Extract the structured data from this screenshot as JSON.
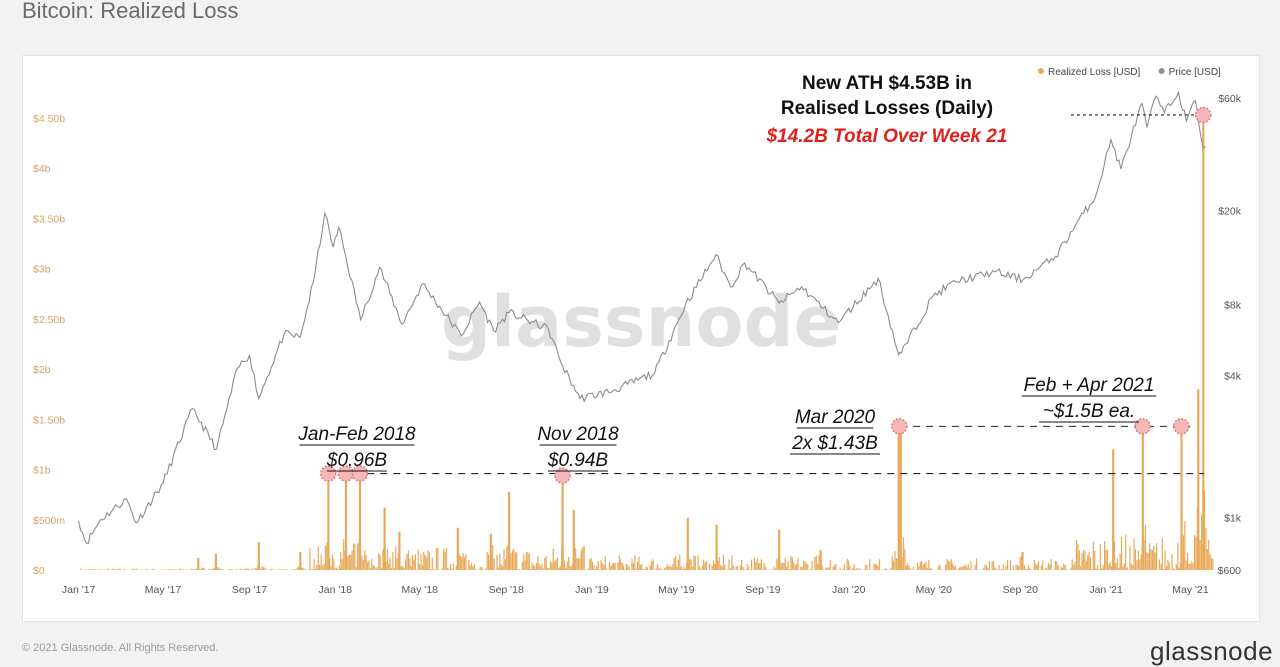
{
  "page": {
    "title": "Bitcoin: Realized Loss",
    "footer_left": "© 2021 Glassnode. All Rights Reserved.",
    "footer_brand": "glassnode",
    "watermark": "glassnode"
  },
  "colors": {
    "loss": "#e9a95a",
    "price": "#8c8c8c",
    "annotation_red": "#e0201b",
    "marker_fill": "#f4b8b8",
    "marker_stroke": "#e07a7a",
    "axis_text_left": "#d9a464",
    "axis_text": "#555555"
  },
  "chart_data": {
    "type": "bar",
    "legend": [
      {
        "name": "Realized Loss [USD]",
        "color": "#e9a95a"
      },
      {
        "name": "Price [USD]",
        "color": "#8c8c8c"
      }
    ],
    "legend_position": "top-right",
    "x_ticks": [
      "Jan '17",
      "May '17",
      "Sep '17",
      "Jan '18",
      "May '18",
      "Sep '18",
      "Jan '19",
      "May '19",
      "Sep '19",
      "Jan '20",
      "May '20",
      "Sep '20",
      "Jan '21",
      "May '21"
    ],
    "x_tick_dates": [
      "2017-01-01",
      "2017-05-01",
      "2017-09-01",
      "2018-01-01",
      "2018-05-01",
      "2018-09-01",
      "2019-01-01",
      "2019-05-01",
      "2019-09-01",
      "2020-01-01",
      "2020-05-01",
      "2020-09-01",
      "2021-01-01",
      "2021-05-01"
    ],
    "x_range": [
      "2016-12-24",
      "2021-06-02"
    ],
    "y_left": {
      "ticks": [
        0,
        0.5,
        1,
        1.5,
        2,
        2.5,
        3,
        3.5,
        4,
        4.5
      ],
      "tick_labels": [
        "$0",
        "$500m",
        "$1b",
        "$1.50b",
        "$2b",
        "$2.50b",
        "$3b",
        "$3.50b",
        "$4b",
        "$4.50b"
      ],
      "range": [
        0,
        4.5
      ],
      "unit": "USD billions"
    },
    "y_right": {
      "scale": "log",
      "ticks": [
        600,
        1000,
        4000,
        8000,
        20000,
        60000
      ],
      "tick_labels": [
        "$600",
        "$1k",
        "$4k",
        "$8k",
        "$20k",
        "$60k"
      ]
    },
    "loss_spikes": [
      {
        "date": "2017-06-20",
        "value": 0.12
      },
      {
        "date": "2017-07-15",
        "value": 0.16
      },
      {
        "date": "2017-09-14",
        "value": 0.28
      },
      {
        "date": "2017-11-12",
        "value": 0.18
      },
      {
        "date": "2017-12-22",
        "value": 0.96
      },
      {
        "date": "2018-01-16",
        "value": 0.96
      },
      {
        "date": "2018-02-05",
        "value": 0.96
      },
      {
        "date": "2018-03-12",
        "value": 0.62
      },
      {
        "date": "2018-04-02",
        "value": 0.38
      },
      {
        "date": "2018-06-24",
        "value": 0.42
      },
      {
        "date": "2018-08-10",
        "value": 0.36
      },
      {
        "date": "2018-09-05",
        "value": 0.78
      },
      {
        "date": "2018-11-20",
        "value": 0.94
      },
      {
        "date": "2018-12-06",
        "value": 0.6
      },
      {
        "date": "2019-05-17",
        "value": 0.52
      },
      {
        "date": "2019-06-27",
        "value": 0.45
      },
      {
        "date": "2019-09-24",
        "value": 0.4
      },
      {
        "date": "2019-11-22",
        "value": 0.2
      },
      {
        "date": "2020-03-12",
        "value": 1.43
      },
      {
        "date": "2020-03-15",
        "value": 1.43
      },
      {
        "date": "2020-09-04",
        "value": 0.18
      },
      {
        "date": "2021-01-11",
        "value": 1.2
      },
      {
        "date": "2021-02-22",
        "value": 1.5
      },
      {
        "date": "2021-04-18",
        "value": 1.5
      },
      {
        "date": "2021-05-12",
        "value": 1.8
      },
      {
        "date": "2021-05-19",
        "value": 4.53
      }
    ],
    "price_series": [
      [
        "2017-01-01",
        970
      ],
      [
        "2017-01-12",
        780
      ],
      [
        "2017-02-01",
        980
      ],
      [
        "2017-03-10",
        1200
      ],
      [
        "2017-03-24",
        950
      ],
      [
        "2017-05-01",
        1400
      ],
      [
        "2017-06-12",
        2900
      ],
      [
        "2017-07-16",
        1950
      ],
      [
        "2017-08-15",
        4300
      ],
      [
        "2017-09-01",
        4900
      ],
      [
        "2017-09-14",
        3200
      ],
      [
        "2017-10-20",
        6000
      ],
      [
        "2017-11-12",
        5800
      ],
      [
        "2017-12-01",
        10000
      ],
      [
        "2017-12-17",
        19500
      ],
      [
        "2017-12-29",
        14000
      ],
      [
        "2018-01-06",
        17000
      ],
      [
        "2018-02-06",
        6900
      ],
      [
        "2018-03-05",
        11500
      ],
      [
        "2018-04-06",
        6600
      ],
      [
        "2018-05-05",
        9800
      ],
      [
        "2018-06-29",
        5900
      ],
      [
        "2018-07-25",
        8200
      ],
      [
        "2018-08-14",
        6200
      ],
      [
        "2018-09-05",
        7400
      ],
      [
        "2018-10-31",
        6300
      ],
      [
        "2018-11-20",
        4400
      ],
      [
        "2018-12-15",
        3200
      ],
      [
        "2019-01-31",
        3450
      ],
      [
        "2019-03-31",
        4100
      ],
      [
        "2019-05-14",
        8000
      ],
      [
        "2019-06-26",
        13000
      ],
      [
        "2019-07-17",
        9500
      ],
      [
        "2019-08-06",
        12000
      ],
      [
        "2019-09-24",
        8100
      ],
      [
        "2019-10-26",
        9500
      ],
      [
        "2019-12-17",
        6700
      ],
      [
        "2020-02-12",
        10300
      ],
      [
        "2020-03-12",
        4900
      ],
      [
        "2020-03-16",
        5000
      ],
      [
        "2020-04-30",
        8700
      ],
      [
        "2020-06-01",
        10000
      ],
      [
        "2020-07-27",
        11000
      ],
      [
        "2020-09-05",
        10200
      ],
      [
        "2020-10-21",
        12800
      ],
      [
        "2020-11-30",
        19500
      ],
      [
        "2020-12-17",
        23000
      ],
      [
        "2021-01-08",
        40000
      ],
      [
        "2021-01-22",
        30000
      ],
      [
        "2021-02-21",
        57000
      ],
      [
        "2021-02-28",
        45000
      ],
      [
        "2021-03-13",
        61000
      ],
      [
        "2021-03-25",
        52000
      ],
      [
        "2021-04-14",
        63500
      ],
      [
        "2021-04-25",
        48000
      ],
      [
        "2021-05-08",
        58500
      ],
      [
        "2021-05-19",
        37000
      ],
      [
        "2021-05-22",
        37500
      ]
    ],
    "reference_lines": [
      {
        "value_left": 0.96,
        "from": "2017-12-22",
        "to": "2021-05-20"
      },
      {
        "value_left": 1.43,
        "from": "2020-03-14",
        "to": "2021-05-01"
      },
      {
        "value_left": 4.53,
        "from": "2020-11-12",
        "to": "2021-05-19"
      }
    ],
    "markers": [
      {
        "date": "2017-12-22",
        "value": 0.96
      },
      {
        "date": "2018-01-16",
        "value": 0.96
      },
      {
        "date": "2018-02-05",
        "value": 0.96
      },
      {
        "date": "2018-11-20",
        "value": 0.94
      },
      {
        "date": "2020-03-13",
        "value": 1.43
      },
      {
        "date": "2021-02-22",
        "value": 1.43
      },
      {
        "date": "2021-04-18",
        "value": 1.43
      },
      {
        "date": "2021-05-19",
        "value": 4.53
      }
    ],
    "annotations": [
      {
        "lines": [
          "New ATH $4.53B in",
          "Realised Losses (Daily)"
        ],
        "style": "bold"
      },
      {
        "lines": [
          "$14.2B Total Over Week 21"
        ],
        "style": "bold-italic-red"
      },
      {
        "lines": [
          "Jan-Feb 2018",
          "$0.96B"
        ],
        "style": "italic-underline"
      },
      {
        "lines": [
          "Nov 2018",
          "$0.94B"
        ],
        "style": "italic-underline"
      },
      {
        "lines": [
          "Mar 2020",
          "2x $1.43B"
        ],
        "style": "italic-underline"
      },
      {
        "lines": [
          "Feb + Apr 2021",
          "~$1.5B ea."
        ],
        "style": "italic-underline"
      }
    ]
  }
}
